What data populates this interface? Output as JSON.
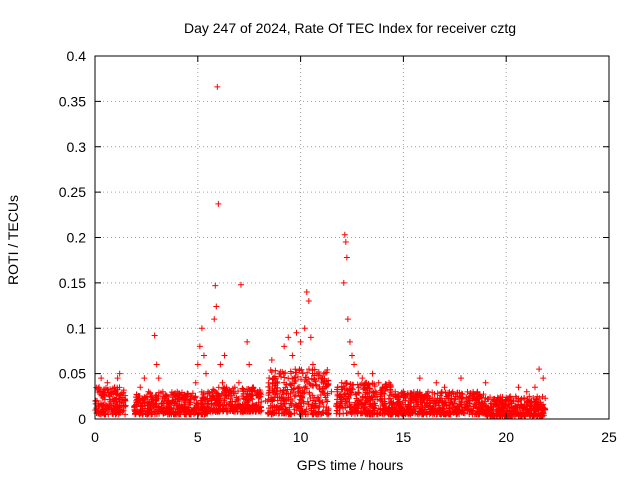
{
  "chart_data": {
    "type": "scatter",
    "title": "Day 247 of 2024, Rate Of TEC Index for receiver cztg",
    "xlabel": "GPS time / hours",
    "ylabel": "ROTI / TECUs",
    "xlim": [
      0,
      25
    ],
    "ylim": [
      0,
      0.4
    ],
    "xticks": [
      0,
      5,
      10,
      15,
      20,
      25
    ],
    "xtick_labels": [
      "0",
      "5",
      "10",
      "15",
      "20",
      "25"
    ],
    "yticks": [
      0,
      0.05,
      0.1,
      0.15,
      0.2,
      0.25,
      0.3,
      0.35,
      0.4
    ],
    "ytick_labels": [
      "0",
      "0.05",
      "0.1",
      "0.15",
      "0.2",
      "0.25",
      "0.3",
      "0.35",
      "0.4"
    ],
    "grid": true,
    "marker": "+",
    "color": "#ff0000",
    "series": [
      {
        "name": "ROTI",
        "points": [
          [
            0.1,
            0.02
          ],
          [
            0.2,
            0.035
          ],
          [
            0.3,
            0.045
          ],
          [
            0.4,
            0.03
          ],
          [
            0.5,
            0.015
          ],
          [
            0.6,
            0.04
          ],
          [
            0.7,
            0.025
          ],
          [
            0.8,
            0.01
          ],
          [
            0.9,
            0.02
          ],
          [
            1.0,
            0.03
          ],
          [
            1.1,
            0.045
          ],
          [
            1.2,
            0.05
          ],
          [
            1.3,
            0.02
          ],
          [
            1.4,
            0.015
          ],
          [
            2.0,
            0.02
          ],
          [
            2.2,
            0.035
          ],
          [
            2.4,
            0.045
          ],
          [
            2.6,
            0.03
          ],
          [
            2.8,
            0.02
          ],
          [
            2.9,
            0.092
          ],
          [
            3.0,
            0.06
          ],
          [
            3.1,
            0.045
          ],
          [
            3.3,
            0.03
          ],
          [
            3.5,
            0.025
          ],
          [
            3.8,
            0.02
          ],
          [
            4.0,
            0.03
          ],
          [
            4.3,
            0.025
          ],
          [
            4.6,
            0.02
          ],
          [
            4.9,
            0.04
          ],
          [
            5.0,
            0.06
          ],
          [
            5.1,
            0.08
          ],
          [
            5.2,
            0.1
          ],
          [
            5.3,
            0.07
          ],
          [
            5.4,
            0.05
          ],
          [
            5.5,
            0.03
          ],
          [
            5.7,
            0.03
          ],
          [
            5.8,
            0.11
          ],
          [
            5.85,
            0.147
          ],
          [
            5.9,
            0.124
          ],
          [
            5.95,
            0.366
          ],
          [
            6.0,
            0.237
          ],
          [
            6.1,
            0.06
          ],
          [
            6.2,
            0.04
          ],
          [
            6.3,
            0.07
          ],
          [
            6.4,
            0.035
          ],
          [
            6.6,
            0.03
          ],
          [
            6.8,
            0.035
          ],
          [
            7.0,
            0.04
          ],
          [
            7.1,
            0.148
          ],
          [
            7.3,
            0.03
          ],
          [
            7.4,
            0.085
          ],
          [
            7.5,
            0.06
          ],
          [
            7.7,
            0.035
          ],
          [
            7.9,
            0.03
          ],
          [
            8.3,
            0.02
          ],
          [
            8.6,
            0.065
          ],
          [
            8.8,
            0.04
          ],
          [
            9.0,
            0.05
          ],
          [
            9.2,
            0.08
          ],
          [
            9.4,
            0.09
          ],
          [
            9.6,
            0.07
          ],
          [
            9.8,
            0.095
          ],
          [
            10.0,
            0.085
          ],
          [
            10.2,
            0.1
          ],
          [
            10.3,
            0.14
          ],
          [
            10.4,
            0.13
          ],
          [
            10.5,
            0.09
          ],
          [
            10.6,
            0.06
          ],
          [
            10.8,
            0.05
          ],
          [
            11.0,
            0.045
          ],
          [
            11.2,
            0.035
          ],
          [
            11.5,
            0.03
          ],
          [
            11.8,
            0.035
          ],
          [
            12.0,
            0.04
          ],
          [
            12.1,
            0.15
          ],
          [
            12.15,
            0.203
          ],
          [
            12.2,
            0.195
          ],
          [
            12.25,
            0.178
          ],
          [
            12.3,
            0.11
          ],
          [
            12.4,
            0.085
          ],
          [
            12.5,
            0.07
          ],
          [
            12.6,
            0.06
          ],
          [
            12.8,
            0.05
          ],
          [
            13.0,
            0.045
          ],
          [
            13.2,
            0.04
          ],
          [
            13.5,
            0.05
          ],
          [
            13.8,
            0.04
          ],
          [
            14.0,
            0.035
          ],
          [
            14.3,
            0.04
          ],
          [
            14.6,
            0.03
          ],
          [
            15.0,
            0.03
          ],
          [
            15.4,
            0.025
          ],
          [
            15.8,
            0.045
          ],
          [
            16.2,
            0.03
          ],
          [
            16.6,
            0.04
          ],
          [
            17.0,
            0.035
          ],
          [
            17.4,
            0.03
          ],
          [
            17.8,
            0.045
          ],
          [
            18.2,
            0.025
          ],
          [
            18.6,
            0.03
          ],
          [
            19.0,
            0.04
          ],
          [
            19.4,
            0.02
          ],
          [
            19.8,
            0.02
          ],
          [
            20.2,
            0.025
          ],
          [
            20.6,
            0.035
          ],
          [
            21.0,
            0.03
          ],
          [
            21.4,
            0.035
          ],
          [
            21.6,
            0.055
          ],
          [
            21.8,
            0.045
          ]
        ]
      }
    ],
    "dense_bands": [
      {
        "x": [
          0.0,
          1.5
        ],
        "y": [
          0.005,
          0.035
        ]
      },
      {
        "x": [
          1.9,
          5.6
        ],
        "y": [
          0.005,
          0.03
        ]
      },
      {
        "x": [
          5.6,
          8.1
        ],
        "y": [
          0.008,
          0.035
        ]
      },
      {
        "x": [
          8.4,
          11.4
        ],
        "y": [
          0.005,
          0.055
        ]
      },
      {
        "x": [
          11.7,
          14.5
        ],
        "y": [
          0.005,
          0.04
        ]
      },
      {
        "x": [
          14.5,
          19.0
        ],
        "y": [
          0.005,
          0.03
        ]
      },
      {
        "x": [
          19.0,
          21.9
        ],
        "y": [
          0.003,
          0.025
        ]
      }
    ]
  }
}
